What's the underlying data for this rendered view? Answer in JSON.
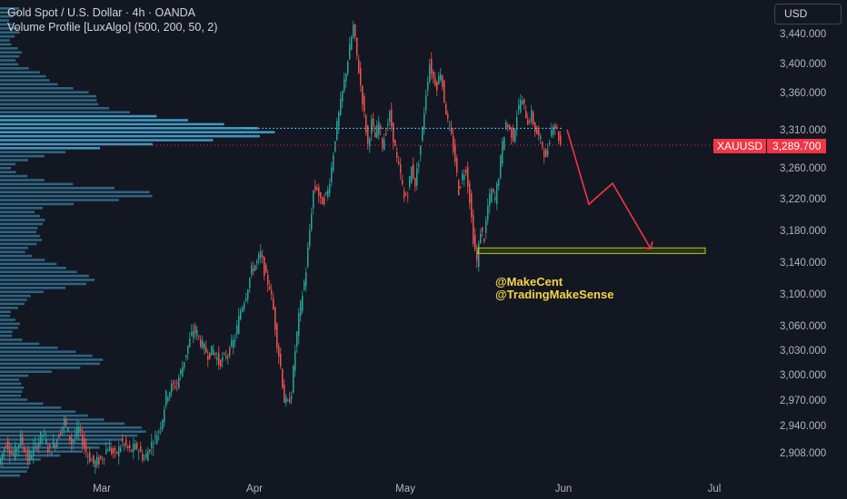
{
  "header": {
    "title": "Gold Spot / U.S. Dollar · 4h · OANDA",
    "indicator": "Volume Profile [LuxAlgo] (500, 200, 50, 2)"
  },
  "currency_button": "USD",
  "price_tag": {
    "symbol": "XAUUSD",
    "value": "3,289.700"
  },
  "watermark": {
    "line1": "@MakeCent",
    "line2": "@TradingMakeSense"
  },
  "colors": {
    "background": "#131722",
    "up": "#26a69a",
    "down": "#ef5350",
    "profile": "#4fc3f7",
    "poc": "#4fc3f7",
    "current_price": "#f23645",
    "arrow": "#f23645",
    "zone": "#b5cc18"
  },
  "chart_data": {
    "type": "candlestick",
    "symbol": "XAUUSD",
    "timeframe": "4h",
    "current_price": 3289.7,
    "poc_price": 3312,
    "y_ticks": [
      "3,440.000",
      "3,400.000",
      "3,360.000",
      "3,310.000",
      "3,260.000",
      "3,220.000",
      "3,180.000",
      "3,140.000",
      "3,100.000",
      "3,060.000",
      "3,030.000",
      "3,000.000",
      "2,970.000",
      "2,940.000",
      "2,908.000"
    ],
    "x_ticks": [
      "Mar",
      "Apr",
      "May",
      "Jun",
      "Jul"
    ],
    "price_path": [
      [
        0,
        2895
      ],
      [
        8,
        2920
      ],
      [
        16,
        2905
      ],
      [
        24,
        2925
      ],
      [
        32,
        2900
      ],
      [
        40,
        2915
      ],
      [
        48,
        2930
      ],
      [
        56,
        2910
      ],
      [
        64,
        2925
      ],
      [
        72,
        2945
      ],
      [
        80,
        2920
      ],
      [
        88,
        2935
      ],
      [
        96,
        2910
      ],
      [
        104,
        2895
      ],
      [
        112,
        2900
      ],
      [
        120,
        2915
      ],
      [
        128,
        2905
      ],
      [
        136,
        2920
      ],
      [
        144,
        2910
      ],
      [
        152,
        2915
      ],
      [
        160,
        2900
      ],
      [
        166,
        2915
      ],
      [
        172,
        2925
      ],
      [
        176,
        2935
      ],
      [
        180,
        2950
      ],
      [
        184,
        2975
      ],
      [
        190,
        2985
      ],
      [
        196,
        2990
      ],
      [
        202,
        3010
      ],
      [
        208,
        3035
      ],
      [
        214,
        3055
      ],
      [
        218,
        3050
      ],
      [
        224,
        3035
      ],
      [
        230,
        3025
      ],
      [
        236,
        3030
      ],
      [
        242,
        3015
      ],
      [
        248,
        3020
      ],
      [
        254,
        3030
      ],
      [
        260,
        3045
      ],
      [
        266,
        3080
      ],
      [
        272,
        3100
      ],
      [
        278,
        3130
      ],
      [
        284,
        3140
      ],
      [
        288,
        3150
      ],
      [
        294,
        3120
      ],
      [
        298,
        3110
      ],
      [
        302,
        3080
      ],
      [
        306,
        3040
      ],
      [
        310,
        3010
      ],
      [
        314,
        2970
      ],
      [
        318,
        2965
      ],
      [
        322,
        2980
      ],
      [
        326,
        3030
      ],
      [
        330,
        3070
      ],
      [
        334,
        3100
      ],
      [
        338,
        3130
      ],
      [
        342,
        3180
      ],
      [
        346,
        3230
      ],
      [
        350,
        3235
      ],
      [
        354,
        3215
      ],
      [
        358,
        3220
      ],
      [
        362,
        3230
      ],
      [
        366,
        3260
      ],
      [
        370,
        3300
      ],
      [
        374,
        3330
      ],
      [
        378,
        3360
      ],
      [
        382,
        3390
      ],
      [
        386,
        3420
      ],
      [
        390,
        3450
      ],
      [
        394,
        3410
      ],
      [
        398,
        3370
      ],
      [
        402,
        3330
      ],
      [
        406,
        3290
      ],
      [
        410,
        3320
      ],
      [
        414,
        3300
      ],
      [
        418,
        3320
      ],
      [
        422,
        3290
      ],
      [
        426,
        3310
      ],
      [
        430,
        3330
      ],
      [
        434,
        3300
      ],
      [
        438,
        3270
      ],
      [
        442,
        3250
      ],
      [
        446,
        3220
      ],
      [
        450,
        3230
      ],
      [
        454,
        3260
      ],
      [
        458,
        3240
      ],
      [
        462,
        3270
      ],
      [
        466,
        3310
      ],
      [
        470,
        3360
      ],
      [
        474,
        3400
      ],
      [
        478,
        3380
      ],
      [
        482,
        3370
      ],
      [
        486,
        3390
      ],
      [
        490,
        3350
      ],
      [
        494,
        3320
      ],
      [
        498,
        3300
      ],
      [
        502,
        3270
      ],
      [
        506,
        3230
      ],
      [
        510,
        3250
      ],
      [
        514,
        3260
      ],
      [
        518,
        3220
      ],
      [
        522,
        3170
      ],
      [
        526,
        3140
      ],
      [
        530,
        3180
      ],
      [
        534,
        3170
      ],
      [
        538,
        3210
      ],
      [
        542,
        3230
      ],
      [
        546,
        3220
      ],
      [
        550,
        3250
      ],
      [
        554,
        3290
      ],
      [
        558,
        3320
      ],
      [
        562,
        3310
      ],
      [
        566,
        3300
      ],
      [
        570,
        3330
      ],
      [
        574,
        3350
      ],
      [
        578,
        3340
      ],
      [
        582,
        3320
      ],
      [
        586,
        3330
      ],
      [
        590,
        3310
      ],
      [
        594,
        3300
      ],
      [
        598,
        3290
      ],
      [
        602,
        3270
      ],
      [
        606,
        3300
      ],
      [
        610,
        3320
      ],
      [
        614,
        3310
      ],
      [
        618,
        3290
      ]
    ],
    "volume_profile_note": "horizontal histogram along left edge, peak near 3,312"
  }
}
